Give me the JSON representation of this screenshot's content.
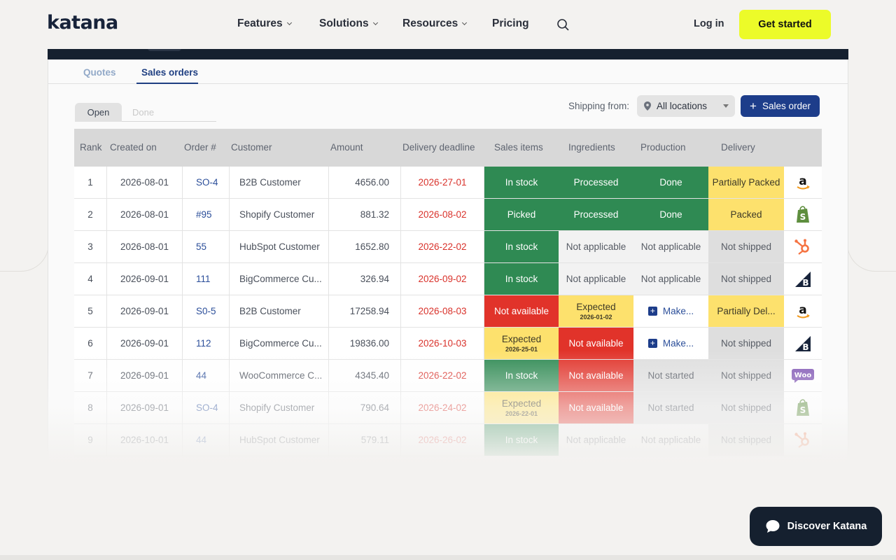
{
  "nav": {
    "logo": "katana",
    "items": [
      {
        "label": "Features"
      },
      {
        "label": "Solutions"
      },
      {
        "label": "Resources"
      },
      {
        "label": "Pricing"
      }
    ],
    "login": "Log in",
    "cta": "Get started"
  },
  "app": {
    "tabs": {
      "quotes": "Quotes",
      "sales_orders": "Sales orders"
    },
    "segment": {
      "open": "Open",
      "done": "Done"
    },
    "shipping_label": "Shipping from:",
    "location": "All locations",
    "add_button": "Sales order",
    "columns": [
      "Rank",
      "Created on",
      "Order #",
      "Customer",
      "Amount",
      "Delivery deadline",
      "Sales items",
      "Ingredients",
      "Production",
      "Delivery"
    ],
    "rows": [
      {
        "rank": "1",
        "created": "2026-08-01",
        "order": "SO-4",
        "customer": "B2B Customer",
        "amount": "4656.00",
        "deadline": "2026-27-01",
        "sales": "In stock",
        "sales_sub": "",
        "ingredients": "Processed",
        "ingredients_sub": "",
        "production": "Done",
        "delivery": "Partially Packed",
        "channel": "amazon-logo-icon"
      },
      {
        "rank": "2",
        "created": "2026-08-01",
        "order": "#95",
        "customer": "Shopify Customer",
        "amount": "881.32",
        "deadline": "2026-08-02",
        "sales": "Picked",
        "sales_sub": "",
        "ingredients": "Processed",
        "ingredients_sub": "",
        "production": "Done",
        "delivery": "Packed",
        "channel": "shopify-logo-icon"
      },
      {
        "rank": "3",
        "created": "2026-08-01",
        "order": "55",
        "customer": "HubSpot Customer",
        "amount": "1652.80",
        "deadline": "2026-22-02",
        "sales": "In stock",
        "sales_sub": "",
        "ingredients": "Not applicable",
        "ingredients_sub": "",
        "production": "Not applicable",
        "delivery": "Not shipped",
        "channel": "hubspot-logo-icon"
      },
      {
        "rank": "4",
        "created": "2026-09-01",
        "order": "111",
        "customer": "BigCommerce Cu...",
        "amount": "326.94",
        "deadline": "2026-09-02",
        "sales": "In stock",
        "sales_sub": "",
        "ingredients": "Not applicable",
        "ingredients_sub": "",
        "production": "Not applicable",
        "delivery": "Not shipped",
        "channel": "bigcommerce-logo-icon"
      },
      {
        "rank": "5",
        "created": "2026-09-01",
        "order": "S0-5",
        "customer": "B2B Customer",
        "amount": "17258.94",
        "deadline": "2026-08-03",
        "sales": "Not available",
        "sales_sub": "",
        "ingredients": "Expected",
        "ingredients_sub": "2026-01-02",
        "production": "Make...",
        "delivery": "Partially Del...",
        "channel": "amazon-logo-icon"
      },
      {
        "rank": "6",
        "created": "2026-09-01",
        "order": "112",
        "customer": "BigCommerce Cu...",
        "amount": "19836.00",
        "deadline": "2026-10-03",
        "sales": "Expected",
        "sales_sub": "2026-25-01",
        "ingredients": "Not available",
        "ingredients_sub": "",
        "production": "Make...",
        "delivery": "Not shipped",
        "channel": "bigcommerce-logo-icon"
      },
      {
        "rank": "7",
        "created": "2026-09-01",
        "order": "44",
        "customer": "WooCommerce C...",
        "amount": "4345.40",
        "deadline": "2026-22-02",
        "sales": "In stock",
        "sales_sub": "",
        "ingredients": "Not available",
        "ingredients_sub": "",
        "production": "Not started",
        "delivery": "Not shipped",
        "channel": "woocommerce-logo-icon"
      },
      {
        "rank": "8",
        "created": "2026-09-01",
        "order": "SO-4",
        "customer": "Shopify Customer",
        "amount": "790.64",
        "deadline": "2026-24-02",
        "sales": "Expected",
        "sales_sub": "2026-22-01",
        "ingredients": "Not available",
        "ingredients_sub": "",
        "production": "Not started",
        "delivery": "Not shipped",
        "channel": "shopify-logo-icon"
      },
      {
        "rank": "9",
        "created": "2026-10-01",
        "order": "44",
        "customer": "HubSpot Customer",
        "amount": "579.11",
        "deadline": "2026-26-02",
        "sales": "In stock",
        "sales_sub": "",
        "ingredients": "Not applicable",
        "ingredients_sub": "",
        "production": "Not applicable",
        "delivery": "Not shipped",
        "channel": "hubspot-logo-icon"
      }
    ]
  },
  "chat": {
    "label": "Discover Katana"
  },
  "colors": {
    "accent": "#ecfb29",
    "navy": "#1d3d8a",
    "green": "#2f8a53",
    "red": "#e1332a",
    "yellow": "#fde16d"
  }
}
